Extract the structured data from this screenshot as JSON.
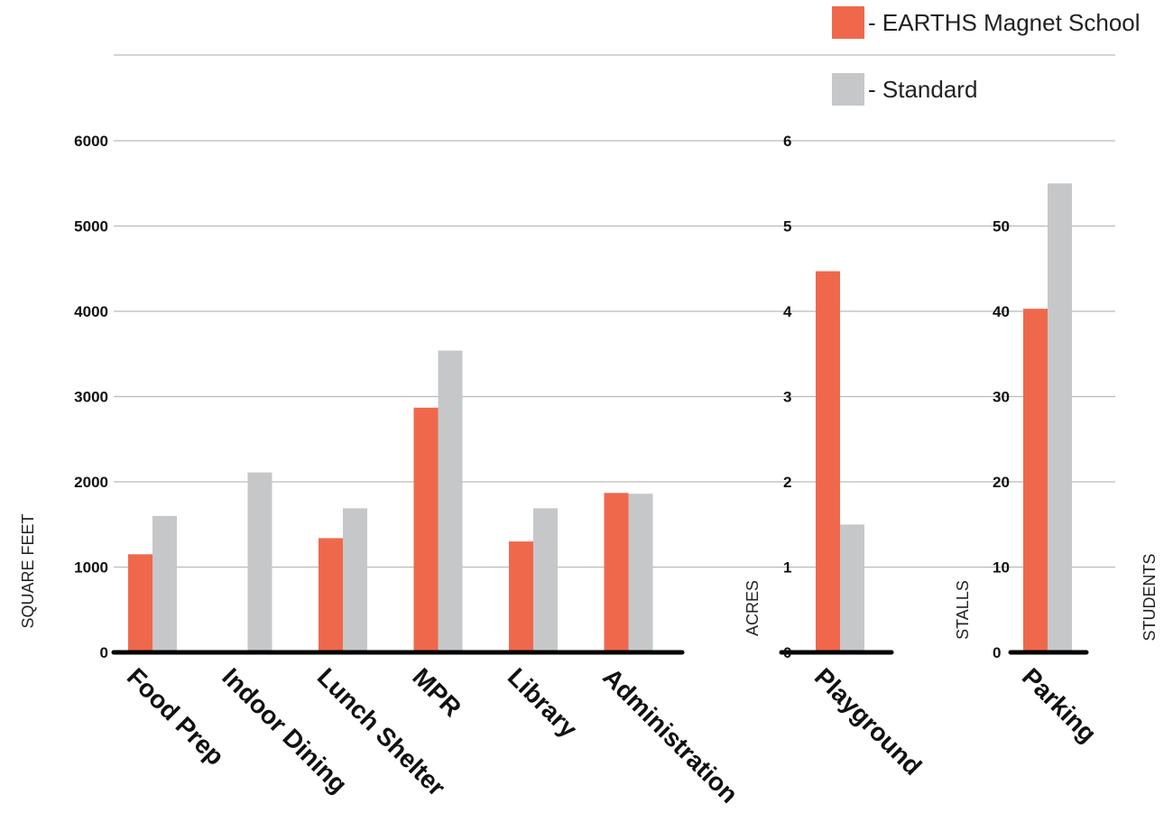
{
  "legend": {
    "items": [
      {
        "label": "- EARTHS Magnet School",
        "color": "#F0684C"
      },
      {
        "label": "- Standard",
        "color": "#C6C7C9"
      }
    ]
  },
  "colors": {
    "grid": "#BBBBBB",
    "baseline": "#000000"
  },
  "chart_data": [
    {
      "type": "bar",
      "ylabel": "SQUARE FEET",
      "ylim": [
        0,
        6000
      ],
      "yticks": [
        0,
        1000,
        2000,
        3000,
        4000,
        5000,
        6000
      ],
      "categories": [
        "Food Prep",
        "Indoor Dining",
        "Lunch Shelter",
        "MPR",
        "Library",
        "Administration"
      ],
      "series": [
        {
          "name": "EARTHS Magnet School",
          "values": [
            1150,
            0,
            1340,
            2870,
            1300,
            1870
          ]
        },
        {
          "name": "Standard",
          "values": [
            1600,
            2110,
            1690,
            3540,
            1690,
            1860
          ]
        }
      ],
      "grid": true
    },
    {
      "type": "bar",
      "ylabel": "ACRES",
      "ylim": [
        0,
        6
      ],
      "yticks": [
        0,
        1,
        2,
        3,
        4,
        5,
        6
      ],
      "categories": [
        "Playground"
      ],
      "series": [
        {
          "name": "EARTHS Magnet School",
          "values": [
            4.47
          ]
        },
        {
          "name": "Standard",
          "values": [
            1.5
          ]
        }
      ],
      "grid": true
    },
    {
      "type": "bar",
      "ylabel": "STALLS",
      "ylabel2": "STUDENTS",
      "ylim": [
        0,
        60
      ],
      "yticks": [
        0,
        10,
        20,
        30,
        40,
        50
      ],
      "categories": [
        "Parking"
      ],
      "series": [
        {
          "name": "EARTHS Magnet School",
          "values": [
            40.3
          ]
        },
        {
          "name": "Standard",
          "values": [
            55
          ]
        }
      ],
      "grid": true
    }
  ]
}
